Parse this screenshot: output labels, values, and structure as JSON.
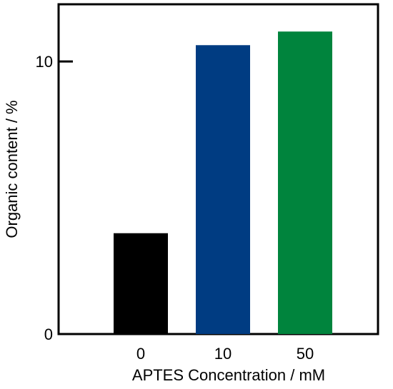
{
  "chart_data": {
    "type": "bar",
    "categories": [
      "0",
      "10",
      "50"
    ],
    "values": [
      3.7,
      10.6,
      11.1
    ],
    "colors": [
      "#000000",
      "#003c82",
      "#00843d"
    ],
    "xlabel": "APTES Concentration / mM",
    "ylabel": "Organic content / %",
    "ylim": [
      0,
      12.1
    ],
    "yticks": [
      0,
      10
    ],
    "ytick_labels": [
      "0",
      "10"
    ],
    "grid": false
  }
}
